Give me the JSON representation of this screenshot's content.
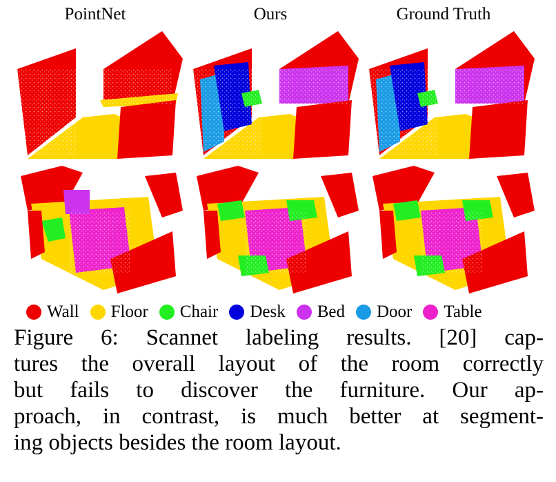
{
  "columns": [
    {
      "title": "PointNet"
    },
    {
      "title": "Ours"
    },
    {
      "title": "Ground Truth"
    }
  ],
  "colors": {
    "wall": "#ee0000",
    "floor": "#ffd700",
    "chair": "#22ee22",
    "desk": "#0000dd",
    "bed": "#cc33ee",
    "door": "#1a9be6",
    "table": "#ee22cc"
  },
  "legend": [
    {
      "label": "Wall",
      "color": "#ee0000"
    },
    {
      "label": "Floor",
      "color": "#ffd700"
    },
    {
      "label": "Chair",
      "color": "#22ee22"
    },
    {
      "label": "Desk",
      "color": "#0000dd"
    },
    {
      "label": "Bed",
      "color": "#cc33ee"
    },
    {
      "label": "Door",
      "color": "#1a9be6"
    },
    {
      "label": "Table",
      "color": "#ee22cc"
    }
  ],
  "caption": {
    "lines": [
      "Figure 6: Scannet labeling results. [20] cap-",
      "tures the overall layout of the room correctly",
      "but fails to discover the furniture. Our ap-",
      "proach, in contrast, is much better at segment-",
      "ing objects besides the room layout."
    ]
  }
}
